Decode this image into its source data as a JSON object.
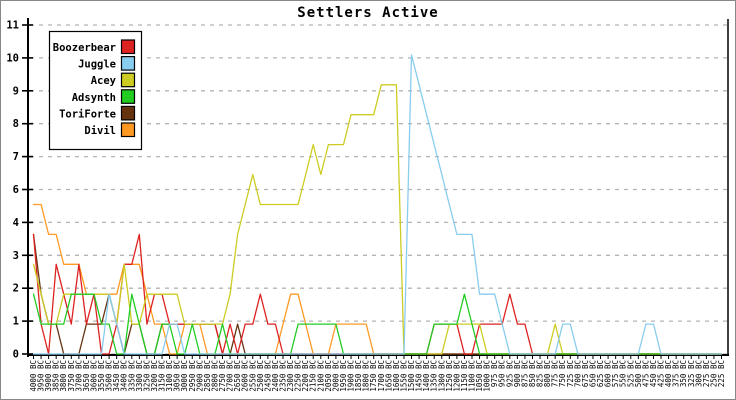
{
  "title": "Settlers Active",
  "legend": {
    "entries": [
      "Boozerbear",
      "Juggle",
      "Acey",
      "Adsynth",
      "ToriForte",
      "Divil"
    ]
  },
  "colors": {
    "Boozerbear": "#dd2222",
    "Juggle": "#88ccee",
    "Acey": "#cccc22",
    "Adsynth": "#22cc22",
    "ToriForte": "#663311",
    "Divil": "#ff9922",
    "grid": "#b4b4b4",
    "axis": "#000000"
  },
  "chart_data": {
    "type": "line",
    "title": "Settlers Active",
    "grid": true,
    "legend_position": "top-left",
    "y_axis_labels_bottom_to_top": [
      "0",
      "1",
      "2",
      "3",
      "4",
      "6",
      "7",
      "8",
      "9",
      "10",
      "11"
    ],
    "y_true_range": [
      0,
      11
    ],
    "x_labels": [
      "4000 BC",
      "3950 BC",
      "3900 BC",
      "3850 BC",
      "3800 BC",
      "3750 BC",
      "3700 BC",
      "3650 BC",
      "3600 BC",
      "3550 BC",
      "3500 BC",
      "3450 BC",
      "3400 BC",
      "3350 BC",
      "3300 BC",
      "3250 BC",
      "3200 BC",
      "3150 BC",
      "3100 BC",
      "3050 BC",
      "3000 BC",
      "2950 BC",
      "2900 BC",
      "2850 BC",
      "2800 BC",
      "2750 BC",
      "2700 BC",
      "2650 BC",
      "2600 BC",
      "2550 BC",
      "2500 BC",
      "2450 BC",
      "2400 BC",
      "2350 BC",
      "2300 BC",
      "2250 BC",
      "2200 BC",
      "2150 BC",
      "2100 BC",
      "2050 BC",
      "2000 BC",
      "1950 BC",
      "1900 BC",
      "1850 BC",
      "1800 BC",
      "1750 BC",
      "1700 BC",
      "1650 BC",
      "1600 BC",
      "1550 BC",
      "1500 BC",
      "1450 BC",
      "1400 BC",
      "1350 BC",
      "1300 BC",
      "1250 BC",
      "1200 BC",
      "1150 BC",
      "1100 BC",
      "1050 BC",
      "1000 BC",
      "975 BC",
      "950 BC",
      "925 BC",
      "900 BC",
      "875 BC",
      "850 BC",
      "825 BC",
      "800 BC",
      "775 BC",
      "750 BC",
      "725 BC",
      "700 BC",
      "675 BC",
      "650 BC",
      "625 BC",
      "600 BC",
      "575 BC",
      "550 BC",
      "525 BC",
      "500 BC",
      "475 BC",
      "450 BC",
      "425 BC",
      "400 BC",
      "375 BC",
      "350 BC",
      "325 BC",
      "300 BC",
      "275 BC",
      "250 BC",
      "225 BC"
    ],
    "series": [
      {
        "name": "Divil",
        "color": "#ff9922",
        "values": [
          5,
          5,
          4,
          4,
          3,
          3,
          3,
          2,
          2,
          2,
          2,
          2,
          3,
          3,
          3,
          2,
          1,
          1,
          0,
          0,
          1,
          1,
          1,
          0,
          0,
          0,
          0,
          0,
          0,
          0,
          0,
          0,
          0,
          1,
          2,
          2,
          1,
          0,
          0,
          0,
          1,
          1,
          1,
          1,
          1,
          0,
          0,
          0,
          0,
          0,
          0,
          0,
          0,
          0,
          0,
          0,
          0,
          0,
          0,
          0,
          0,
          0,
          0,
          0,
          0,
          0,
          0,
          0,
          0,
          0,
          0,
          0,
          0,
          0,
          0,
          0,
          0,
          0,
          0,
          0,
          0,
          0,
          0,
          0,
          0,
          0,
          0,
          0,
          0,
          0,
          0,
          0
        ]
      },
      {
        "name": "ToriForte",
        "color": "#663311",
        "values": [
          4,
          2,
          1,
          1,
          0,
          0,
          0,
          1,
          1,
          1,
          2,
          1,
          0,
          1,
          1,
          0,
          0,
          1,
          1,
          1,
          1,
          1,
          1,
          1,
          1,
          0,
          0,
          1,
          0,
          0,
          0,
          0,
          0,
          0,
          0,
          0,
          0,
          0,
          0,
          0,
          0,
          0,
          0,
          0,
          0,
          0,
          0,
          0,
          0,
          0,
          0,
          0,
          0,
          0,
          0,
          0,
          0,
          0,
          0,
          0,
          0,
          0,
          0,
          0,
          0,
          0,
          0,
          0,
          0,
          0,
          0,
          0,
          0,
          0,
          0,
          0,
          0,
          0,
          0,
          0,
          0,
          0,
          0,
          0,
          0,
          0,
          0,
          0,
          0,
          0,
          0,
          0
        ]
      },
      {
        "name": "Boozerbear",
        "color": "#dd2222",
        "values": [
          4,
          1,
          0,
          3,
          2,
          1,
          3,
          1,
          2,
          0,
          0,
          1,
          3,
          3,
          4,
          1,
          2,
          2,
          1,
          1,
          1,
          1,
          1,
          1,
          1,
          0,
          1,
          0,
          1,
          1,
          2,
          1,
          1,
          0,
          0,
          0,
          0,
          0,
          0,
          0,
          0,
          0,
          0,
          0,
          0,
          0,
          0,
          0,
          0,
          0,
          0,
          0,
          0,
          1,
          1,
          1,
          1,
          0,
          0,
          1,
          1,
          1,
          1,
          2,
          1,
          1,
          0,
          0,
          0,
          0,
          0,
          0,
          0,
          0,
          0,
          0,
          0,
          0,
          0,
          0,
          0,
          0,
          0,
          0,
          0,
          0,
          0,
          0,
          0,
          0,
          0,
          0
        ]
      },
      {
        "name": "Acey",
        "color": "#cccc22",
        "values": [
          3,
          2,
          1,
          1,
          2,
          2,
          2,
          2,
          2,
          2,
          2,
          1,
          3,
          1,
          1,
          2,
          2,
          2,
          2,
          2,
          1,
          1,
          1,
          1,
          1,
          1,
          2,
          4,
          5,
          6,
          5,
          5,
          5,
          5,
          5,
          5,
          6,
          7,
          6,
          7,
          7,
          7,
          8,
          8,
          8,
          8,
          9,
          9,
          9,
          0,
          0,
          0,
          0,
          0,
          0,
          1,
          1,
          1,
          1,
          1,
          0,
          0,
          0,
          0,
          0,
          0,
          0,
          0,
          0,
          1,
          0,
          0,
          0,
          0,
          0,
          0,
          0,
          0,
          0,
          0,
          0,
          0,
          0,
          0,
          0,
          0,
          0,
          0,
          0,
          0,
          0,
          0
        ]
      },
      {
        "name": "Adsynth",
        "color": "#22cc22",
        "values": [
          2,
          1,
          1,
          1,
          1,
          2,
          2,
          2,
          2,
          1,
          1,
          0,
          0,
          2,
          1,
          0,
          0,
          1,
          1,
          0,
          0,
          1,
          0,
          0,
          0,
          1,
          0,
          0,
          0,
          0,
          0,
          0,
          0,
          0,
          0,
          1,
          1,
          1,
          1,
          1,
          1,
          0,
          0,
          0,
          0,
          0,
          0,
          0,
          0,
          0,
          0,
          0,
          0,
          1,
          1,
          1,
          1,
          2,
          1,
          0,
          0,
          0,
          0,
          0,
          0,
          0,
          0,
          0,
          0,
          0,
          0,
          0,
          0,
          0,
          0,
          0,
          0,
          0,
          0,
          0,
          0,
          0,
          0,
          0,
          0,
          0,
          0,
          0,
          0,
          0,
          0,
          0
        ]
      },
      {
        "name": "Juggle",
        "color": "#88ccee",
        "values": [
          0,
          0,
          0,
          0,
          0,
          0,
          0,
          0,
          0,
          0,
          2,
          1,
          0,
          0,
          0,
          0,
          0,
          0,
          1,
          1,
          0,
          0,
          0,
          0,
          0,
          0,
          0,
          0,
          0,
          0,
          0,
          0,
          0,
          0,
          0,
          0,
          0,
          0,
          0,
          0,
          0,
          0,
          0,
          0,
          0,
          0,
          0,
          0,
          0,
          0,
          10,
          9,
          8,
          7,
          6,
          5,
          4,
          4,
          4,
          2,
          2,
          2,
          1,
          0,
          0,
          0,
          0,
          0,
          0,
          0,
          1,
          1,
          0,
          0,
          0,
          0,
          0,
          0,
          0,
          0,
          0,
          1,
          1,
          0,
          0,
          0,
          0,
          0,
          0,
          0,
          0,
          0
        ]
      }
    ]
  }
}
